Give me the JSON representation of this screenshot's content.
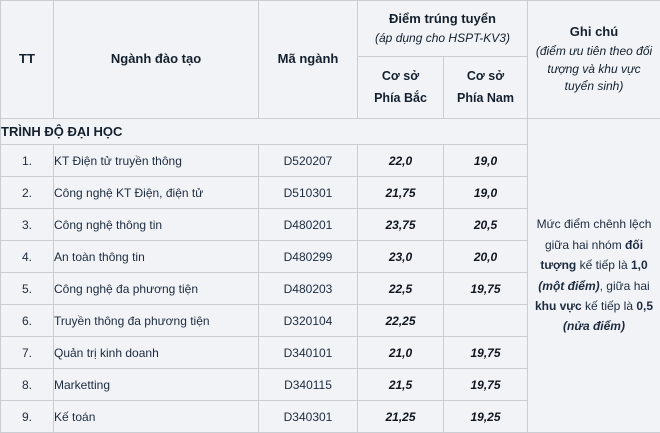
{
  "table": {
    "header": {
      "tt": "TT",
      "nganh": "Ngành đào tạo",
      "ma": "Mã ngành",
      "diem_title": "Điểm trúng tuyển",
      "diem_sub": "(áp dụng cho HSPT-KV3)",
      "coso_bac_line1": "Cơ sở",
      "coso_bac_line2": "Phía Bắc",
      "coso_nam_line1": "Cơ sở",
      "coso_nam_line2": "Phía Nam",
      "ghichu_title": "Ghi chú",
      "ghichu_sub": "(điểm ưu tiên theo đối tượng và khu vực tuyển sinh)"
    },
    "section_label": "TRÌNH ĐỘ ĐẠI HỌC",
    "rows": [
      {
        "tt": "1.",
        "name": "KT Điện tử truyền thông",
        "code": "D520207",
        "north": "22,0",
        "south": "19,0"
      },
      {
        "tt": "2.",
        "name": "Công nghệ KT Điện, điện tử",
        "code": "D510301",
        "north": "21,75",
        "south": "19,0"
      },
      {
        "tt": "3.",
        "name": "Công nghệ thông tin",
        "code": "D480201",
        "north": "23,75",
        "south": "20,5"
      },
      {
        "tt": "4.",
        "name": "An toàn thông tin",
        "code": "D480299",
        "north": "23,0",
        "south": "20,0"
      },
      {
        "tt": "5.",
        "name": "Công nghệ đa phương tiện",
        "code": "D480203",
        "north": "22,5",
        "south": "19,75"
      },
      {
        "tt": "6.",
        "name": "Truyền thông đa phương tiện",
        "code": "D320104",
        "north": "22,25",
        "south": ""
      },
      {
        "tt": "7.",
        "name": "Quản trị kinh doanh",
        "code": "D340101",
        "north": "21,0",
        "south": "19,75"
      },
      {
        "tt": "8.",
        "name": "Marketting",
        "code": "D340115",
        "north": "21,5",
        "south": "19,75"
      },
      {
        "tt": "9.",
        "name": "Kế toán",
        "code": "D340301",
        "north": "21,25",
        "south": "19,25"
      }
    ],
    "note": {
      "segments": [
        {
          "text": "Mức điểm chênh lệch giữa hai nhóm ",
          "style": "normal"
        },
        {
          "text": "đối tượng",
          "style": "bold"
        },
        {
          "text": " kế tiếp là ",
          "style": "normal"
        },
        {
          "text": "1,0",
          "style": "bold"
        },
        {
          "text": " ",
          "style": "normal"
        },
        {
          "text": "(một điểm)",
          "style": "bold-italic"
        },
        {
          "text": ", giữa hai ",
          "style": "normal"
        },
        {
          "text": "khu vực",
          "style": "bold"
        },
        {
          "text": " kế tiếp là ",
          "style": "normal"
        },
        {
          "text": "0,5",
          "style": "bold"
        },
        {
          "text": " ",
          "style": "normal"
        },
        {
          "text": "(nửa điểm)",
          "style": "bold-italic"
        }
      ]
    },
    "colors": {
      "cell_background": "#f1f3f6",
      "border": "#c9ced4",
      "text": "#1d2b3f"
    }
  }
}
